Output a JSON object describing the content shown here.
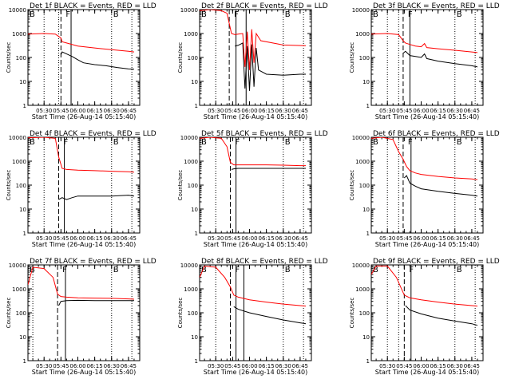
{
  "figure": {
    "xlabel": "Start Time (26-Aug-14 05:15:40)",
    "ylabel": "Counts/sec",
    "x_ticks": [
      "05:30",
      "05:45",
      "06:00",
      "06:15",
      "06:30",
      "06:45"
    ],
    "y_ticks": [
      "1",
      "10",
      "100",
      "1000",
      "10000"
    ],
    "region_labels": [
      "B",
      "F",
      "B"
    ],
    "colors": {
      "events": "#000000",
      "lld": "#ff0000",
      "axes": "#000000"
    }
  },
  "chart_data": [
    {
      "type": "line",
      "title": "Det 1f BLACK = Events, RED = LLD",
      "xlabel": "Start Time (26-Aug-14 05:15:40)",
      "ylabel": "Counts/sec",
      "y_scale": "log",
      "ylim": [
        1,
        10000
      ],
      "xlim": [
        "05:15:40",
        "06:55"
      ],
      "vlines": {
        "dotted": [
          "05:30",
          "05:43"
        ],
        "dashed": "05:45",
        "solid": "05:54",
        "dotted_right": [
          "06:30",
          "06:48"
        ]
      },
      "series": [
        {
          "name": "Events",
          "color": "#000000",
          "x": [
            "05:45",
            "05:46",
            "05:50",
            "05:55",
            "06:00",
            "06:05",
            "06:15",
            "06:25",
            "06:35",
            "06:45",
            "06:50"
          ],
          "y": [
            130,
            170,
            140,
            110,
            80,
            60,
            50,
            45,
            38,
            33,
            32
          ]
        },
        {
          "name": "LLD",
          "color": "#ff0000",
          "x": [
            "05:15:40",
            "05:30",
            "05:40",
            "05:45",
            "05:46",
            "05:50",
            "06:00",
            "06:15",
            "06:30",
            "06:45",
            "06:50"
          ],
          "y": [
            950,
            1000,
            950,
            650,
            450,
            400,
            300,
            250,
            210,
            180,
            170
          ]
        }
      ]
    },
    {
      "type": "line",
      "title": "Det 2f BLACK = Events, RED = LLD",
      "xlabel": "Start Time (26-Aug-14 05:15:40)",
      "ylabel": "Counts/sec",
      "y_scale": "log",
      "ylim": [
        1,
        10000
      ],
      "xlim": [
        "05:15:40",
        "06:55"
      ],
      "vlines": {
        "dotted": [
          "05:30"
        ],
        "dashed": "05:42",
        "solid": [
          "05:48",
          "05:57"
        ],
        "dotted_right": [
          "06:30",
          "06:48"
        ]
      },
      "series": [
        {
          "name": "Events",
          "color": "#000000",
          "x": [
            "05:47",
            "05:50",
            "05:54",
            "05:56",
            "05:58",
            "06:00",
            "06:02",
            "06:04",
            "06:06",
            "06:08",
            "06:15",
            "06:30",
            "06:45",
            "06:50"
          ],
          "y": [
            300,
            320,
            400,
            5,
            300,
            4,
            350,
            6,
            250,
            30,
            20,
            18,
            20,
            20
          ]
        },
        {
          "name": "LLD",
          "color": "#ff0000",
          "x": [
            "05:15:40",
            "05:25",
            "05:35",
            "05:40",
            "05:44",
            "05:47",
            "05:50",
            "05:54",
            "05:56",
            "05:58",
            "06:00",
            "06:02",
            "06:04",
            "06:06",
            "06:10",
            "06:30",
            "06:50"
          ],
          "y": [
            9000,
            10000,
            9000,
            7000,
            1000,
            900,
            950,
            1000,
            40,
            1200,
            30,
            1500,
            60,
            1000,
            500,
            330,
            310
          ]
        }
      ]
    },
    {
      "type": "line",
      "title": "Det 3f BLACK = Events, RED = LLD",
      "xlabel": "Start Time (26-Aug-14 05:15:40)",
      "ylabel": "Counts/sec",
      "y_scale": "log",
      "ylim": [
        1,
        10000
      ],
      "xlim": [
        "05:15:40",
        "06:55"
      ],
      "vlines": {
        "dotted": [
          "05:30",
          "05:40"
        ],
        "dashed": "05:44",
        "solid": "05:50",
        "dotted_right": [
          "06:30",
          "06:48"
        ]
      },
      "series": [
        {
          "name": "Events",
          "color": "#000000",
          "x": [
            "05:44",
            "05:46",
            "05:50",
            "05:55",
            "06:00",
            "06:03",
            "06:05",
            "06:15",
            "06:30",
            "06:45",
            "06:50"
          ],
          "y": [
            150,
            180,
            120,
            110,
            100,
            140,
            90,
            70,
            55,
            45,
            40
          ]
        },
        {
          "name": "LLD",
          "color": "#ff0000",
          "x": [
            "05:15:40",
            "05:30",
            "05:40",
            "05:44",
            "05:46",
            "05:50",
            "05:55",
            "06:00",
            "06:03",
            "06:05",
            "06:15",
            "06:30",
            "06:45",
            "06:50"
          ],
          "y": [
            950,
            1000,
            900,
            500,
            400,
            350,
            300,
            280,
            380,
            260,
            230,
            200,
            170,
            160
          ]
        }
      ]
    },
    {
      "type": "line",
      "title": "Det 4f BLACK = Events, RED = LLD",
      "xlabel": "Start Time (26-Aug-14 05:15:40)",
      "ylabel": "Counts/sec",
      "y_scale": "log",
      "ylim": [
        1,
        10000
      ],
      "xlim": [
        "05:15:40",
        "06:55"
      ],
      "vlines": {
        "dotted": [
          "05:30"
        ],
        "dashed": "05:43",
        "solid": "05:48",
        "dotted_right": [
          "06:30",
          "06:48"
        ]
      },
      "series": [
        {
          "name": "Events",
          "color": "#000000",
          "x": [
            "05:43",
            "05:46",
            "05:50",
            "05:55",
            "06:00",
            "06:15",
            "06:30",
            "06:45",
            "06:50"
          ],
          "y": [
            25,
            30,
            25,
            30,
            35,
            35,
            35,
            38,
            35
          ]
        },
        {
          "name": "LLD",
          "color": "#ff0000",
          "x": [
            "05:15:40",
            "05:30",
            "05:40",
            "05:43",
            "05:46",
            "05:50",
            "06:00",
            "06:15",
            "06:30",
            "06:45",
            "06:50"
          ],
          "y": [
            9500,
            10000,
            9000,
            1500,
            500,
            450,
            420,
            400,
            380,
            360,
            350
          ]
        }
      ]
    },
    {
      "type": "line",
      "title": "Det 5f BLACK = Events, RED = LLD",
      "xlabel": "Start Time (26-Aug-14 05:15:40)",
      "ylabel": "Counts/sec",
      "y_scale": "log",
      "ylim": [
        1,
        10000
      ],
      "xlim": [
        "05:15:40",
        "06:55"
      ],
      "vlines": {
        "dotted": [
          "05:30"
        ],
        "dashed": "05:43",
        "solid": "05:48",
        "dotted_right": [
          "06:30",
          "06:48"
        ]
      },
      "series": [
        {
          "name": "Events",
          "color": "#000000",
          "x": [
            "05:44",
            "05:46",
            "05:50",
            "06:00",
            "06:15",
            "06:30",
            "06:45",
            "06:50"
          ],
          "y": [
            450,
            480,
            500,
            500,
            500,
            500,
            500,
            500
          ]
        },
        {
          "name": "LLD",
          "color": "#ff0000",
          "x": [
            "05:15:40",
            "05:25",
            "05:35",
            "05:40",
            "05:43",
            "05:46",
            "05:50",
            "06:00",
            "06:15",
            "06:30",
            "06:45",
            "06:50"
          ],
          "y": [
            9000,
            10000,
            9000,
            4000,
            900,
            700,
            700,
            700,
            700,
            680,
            650,
            650
          ]
        }
      ]
    },
    {
      "type": "line",
      "title": "Det 6f BLACK = Events, RED = LLD",
      "xlabel": "Start Time (26-Aug-14 05:15:40)",
      "ylabel": "Counts/sec",
      "y_scale": "log",
      "ylim": [
        1,
        10000
      ],
      "xlim": [
        "05:15:40",
        "06:55"
      ],
      "vlines": {
        "dotted": [
          "05:30",
          "05:40"
        ],
        "dashed": "05:44",
        "solid": "05:51",
        "dotted_right": [
          "06:30",
          "06:48"
        ]
      },
      "series": [
        {
          "name": "Events",
          "color": "#000000",
          "x": [
            "05:45",
            "05:47",
            "05:50",
            "05:55",
            "06:00",
            "06:15",
            "06:30",
            "06:45",
            "06:50"
          ],
          "y": [
            200,
            250,
            120,
            90,
            70,
            55,
            45,
            38,
            35
          ]
        },
        {
          "name": "LLD",
          "color": "#ff0000",
          "x": [
            "05:15:40",
            "05:25",
            "05:35",
            "05:40",
            "05:44",
            "05:47",
            "05:50",
            "05:55",
            "06:00",
            "06:15",
            "06:30",
            "06:45",
            "06:50"
          ],
          "y": [
            9000,
            10000,
            8000,
            2500,
            1200,
            600,
            400,
            320,
            280,
            230,
            200,
            180,
            170
          ]
        }
      ]
    },
    {
      "type": "line",
      "title": "Det 7f BLACK = Events, RED = LLD",
      "xlabel": "Start Time (26-Aug-14 05:15:40)",
      "ylabel": "Counts/sec",
      "y_scale": "log",
      "ylim": [
        1,
        10000
      ],
      "xlim": [
        "05:15:40",
        "06:55"
      ],
      "vlines": {
        "dotted": [
          "05:20"
        ],
        "dashed": "05:42",
        "solid": "05:49",
        "dotted_right": [
          "06:30",
          "06:48"
        ]
      },
      "series": [
        {
          "name": "Events",
          "color": "#000000",
          "x": [
            "05:43",
            "05:45",
            "05:50",
            "06:00",
            "06:15",
            "06:30",
            "06:45",
            "06:50"
          ],
          "y": [
            200,
            300,
            320,
            330,
            320,
            320,
            320,
            320
          ]
        },
        {
          "name": "LLD",
          "color": "#ff0000",
          "x": [
            "05:15:40",
            "05:20",
            "05:30",
            "05:38",
            "05:42",
            "05:45",
            "05:50",
            "06:00",
            "06:15",
            "06:30",
            "06:45",
            "06:50"
          ],
          "y": [
            1500,
            8000,
            7000,
            3000,
            600,
            480,
            450,
            420,
            410,
            400,
            380,
            370
          ]
        }
      ]
    },
    {
      "type": "line",
      "title": "Det 8f BLACK = Events, RED = LLD",
      "xlabel": "Start Time (26-Aug-14 05:15:40)",
      "ylabel": "Counts/sec",
      "y_scale": "log",
      "ylim": [
        1,
        10000
      ],
      "xlim": [
        "05:15:40",
        "06:55"
      ],
      "vlines": {
        "dotted": [
          "05:30"
        ],
        "dashed": "05:43",
        "solid": [
          "05:48",
          "05:55"
        ],
        "dotted_right": [
          "06:30",
          "06:48"
        ]
      },
      "series": [
        {
          "name": "Events",
          "color": "#000000",
          "x": [
            "05:46",
            "05:50",
            "06:00",
            "06:15",
            "06:30",
            "06:45",
            "06:50"
          ],
          "y": [
            180,
            140,
            100,
            70,
            50,
            38,
            35
          ]
        },
        {
          "name": "LLD",
          "color": "#ff0000",
          "x": [
            "05:15:40",
            "05:20",
            "05:30",
            "05:38",
            "05:43",
            "05:46",
            "05:50",
            "06:00",
            "06:15",
            "06:30",
            "06:45",
            "06:50"
          ],
          "y": [
            3000,
            9000,
            8000,
            3000,
            1200,
            550,
            450,
            350,
            280,
            230,
            200,
            190
          ]
        }
      ]
    },
    {
      "type": "line",
      "title": "Det 9f BLACK = Events, RED = LLD",
      "xlabel": "Start Time (26-Aug-14 05:15:40)",
      "ylabel": "Counts/sec",
      "y_scale": "log",
      "ylim": [
        1,
        10000
      ],
      "xlim": [
        "05:15:40",
        "06:55"
      ],
      "vlines": {
        "dotted": [
          "05:30",
          "05:40"
        ],
        "dashed": "05:45",
        "solid": "05:51",
        "dotted_right": [
          "06:30",
          "06:48"
        ]
      },
      "series": [
        {
          "name": "Events",
          "color": "#000000",
          "x": [
            "05:46",
            "05:50",
            "06:00",
            "06:15",
            "06:30",
            "06:45",
            "06:50"
          ],
          "y": [
            200,
            130,
            90,
            60,
            45,
            35,
            30
          ]
        },
        {
          "name": "LLD",
          "color": "#ff0000",
          "x": [
            "05:15:40",
            "05:20",
            "05:30",
            "05:38",
            "05:45",
            "05:50",
            "06:00",
            "06:15",
            "06:30",
            "06:45",
            "06:50"
          ],
          "y": [
            4000,
            9000,
            9000,
            3000,
            550,
            420,
            350,
            280,
            230,
            200,
            190
          ]
        }
      ]
    }
  ]
}
